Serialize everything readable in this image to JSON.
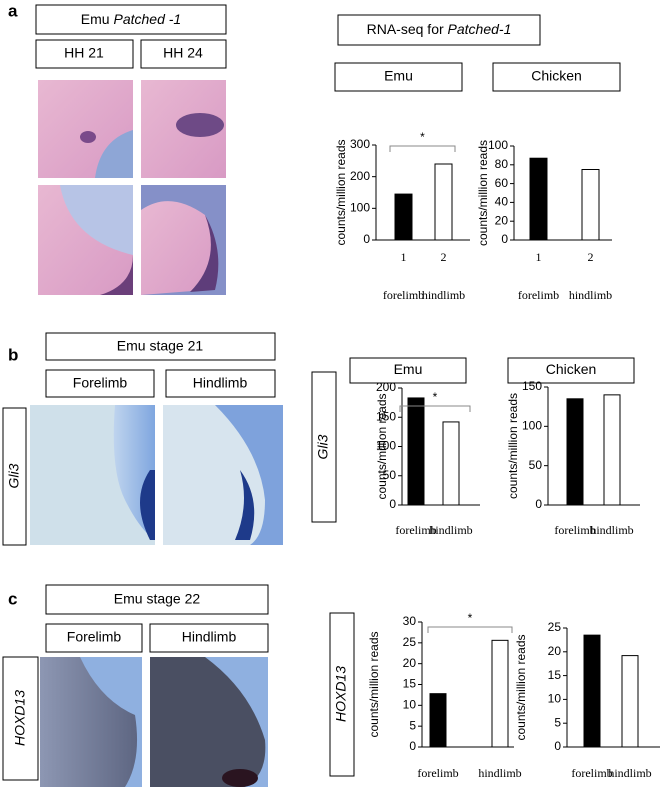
{
  "figure": {
    "panels": [
      {
        "label": "a",
        "title_prefix": "Emu ",
        "title_italic": "Patched -1",
        "columns": [
          "HH 21",
          "HH 24"
        ],
        "header_prefix": "RNA-seq for ",
        "header_italic": "Patched-1"
      },
      {
        "label": "b",
        "title": "Emu stage 21",
        "columns": [
          "Forelimb",
          "Hindlimb"
        ],
        "gene": "Gli3"
      },
      {
        "label": "c",
        "title": "Emu stage 22",
        "columns": [
          "Forelimb",
          "Hindlimb"
        ],
        "gene": "HOXD13"
      }
    ]
  },
  "chart_data": [
    {
      "type": "bar",
      "title": "Emu",
      "categories": [
        "1",
        "2"
      ],
      "category_names": [
        "forelimb",
        "hindlimb"
      ],
      "values": [
        145,
        240
      ],
      "colors": [
        "#000000",
        "#ffffff"
      ],
      "ylim": [
        0,
        300
      ],
      "yticks": [
        0,
        100,
        200,
        300
      ],
      "ylabel": "counts/million reads",
      "annotation": "*"
    },
    {
      "type": "bar",
      "title": "Chicken",
      "categories": [
        "1",
        "2"
      ],
      "category_names": [
        "forelimb",
        "hindlimb"
      ],
      "values": [
        87,
        75
      ],
      "colors": [
        "#000000",
        "#ffffff"
      ],
      "ylim": [
        0,
        100
      ],
      "yticks": [
        0,
        20,
        40,
        60,
        80,
        100
      ],
      "ylabel": "counts/million reads"
    },
    {
      "type": "bar",
      "title": "Emu",
      "categories": [
        "forelimb",
        "hindlimb"
      ],
      "values": [
        183,
        142
      ],
      "colors": [
        "#000000",
        "#ffffff"
      ],
      "ylim": [
        0,
        200
      ],
      "yticks": [
        0,
        50,
        100,
        150,
        200
      ],
      "ylabel": "counts/million reads",
      "annotation": "*"
    },
    {
      "type": "bar",
      "title": "Chicken",
      "categories": [
        "forelimb",
        "hindlimb"
      ],
      "values": [
        135,
        140
      ],
      "colors": [
        "#000000",
        "#ffffff"
      ],
      "ylim": [
        0,
        150
      ],
      "yticks": [
        0,
        50,
        100,
        150
      ],
      "ylabel": "counts/million reads"
    },
    {
      "type": "bar",
      "categories": [
        "forelimb",
        "hindlimb"
      ],
      "values": [
        12.8,
        25.6
      ],
      "colors": [
        "#000000",
        "#ffffff"
      ],
      "ylim": [
        0,
        30
      ],
      "yticks": [
        0,
        5,
        10,
        15,
        20,
        25,
        30
      ],
      "ylabel": "counts/million reads",
      "annotation": "*"
    },
    {
      "type": "bar",
      "categories": [
        "forelimb",
        "hindlimb"
      ],
      "values": [
        23.5,
        19.2
      ],
      "colors": [
        "#000000",
        "#ffffff"
      ],
      "ylim": [
        0,
        25
      ],
      "yticks": [
        0,
        5,
        10,
        15,
        20,
        25
      ],
      "ylabel": "counts/million reads"
    }
  ]
}
